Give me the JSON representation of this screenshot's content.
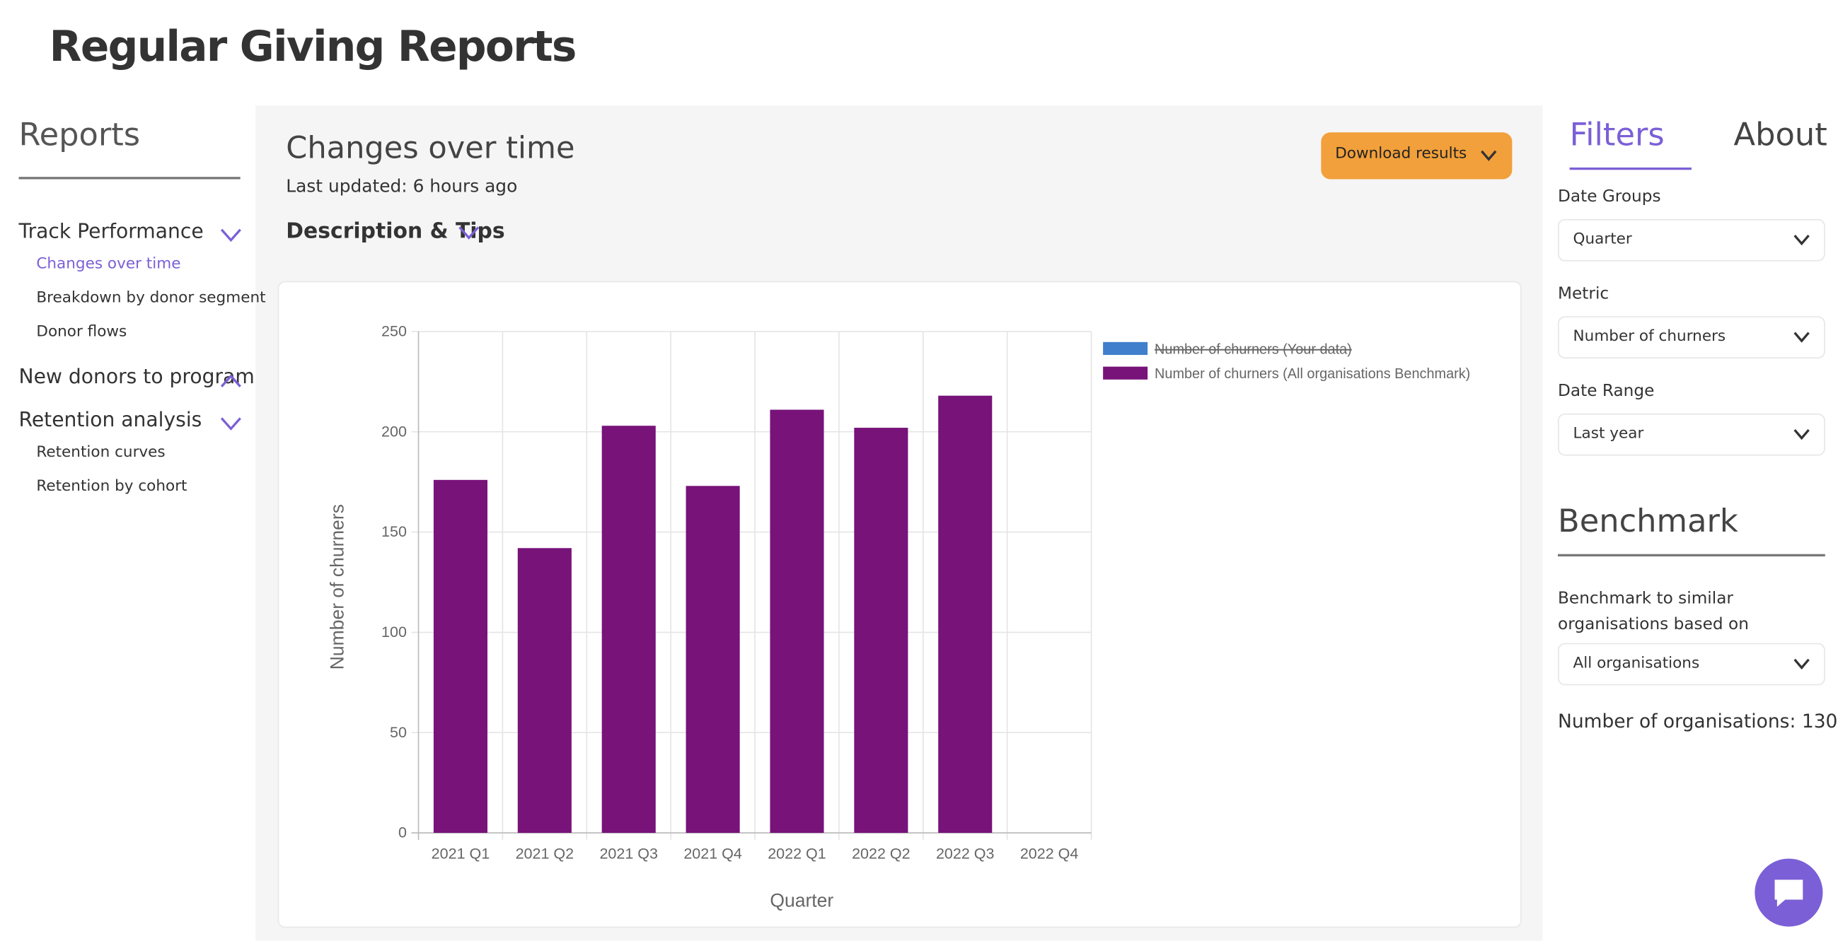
{
  "header": {
    "title": "Regular Giving Reports"
  },
  "sidebar": {
    "heading": "Reports",
    "groups": [
      {
        "label": "Track Performance",
        "items": [
          "Changes over time",
          "Breakdown by donor segment",
          "Donor flows"
        ]
      },
      {
        "label": "New donors to program",
        "items": []
      },
      {
        "label": "Retention analysis",
        "items": [
          "Retention curves",
          "Retention by cohort"
        ]
      }
    ]
  },
  "main": {
    "title": "Changes over time",
    "updated": "Last updated: 6 hours ago",
    "description": "Description & Tips",
    "download": "Download results"
  },
  "chart_data": {
    "type": "bar",
    "categories": [
      "2021 Q1",
      "2021 Q2",
      "2021 Q3",
      "2021 Q4",
      "2022 Q1",
      "2022 Q2",
      "2022 Q3",
      "2022 Q4"
    ],
    "series": [
      {
        "name": "Number of churners (Your data)",
        "color": "#3f7fcb",
        "hidden": true,
        "values": [
          null,
          null,
          null,
          null,
          null,
          null,
          null,
          null
        ]
      },
      {
        "name": "Number of churners (All organisations Benchmark)",
        "color": "#771379",
        "hidden": false,
        "values": [
          176,
          142,
          203,
          173,
          211,
          202,
          218,
          null
        ]
      }
    ],
    "x_label": "Quarter",
    "y_label": "Number of churners",
    "ylim": [
      0,
      250
    ],
    "yticks": [
      0,
      50,
      100,
      150,
      200,
      250
    ],
    "grid": true,
    "legend": "right"
  },
  "filters": {
    "tabs": [
      "Filters",
      "About"
    ],
    "fields": [
      {
        "label": "Date Groups",
        "value": "Quarter"
      },
      {
        "label": "Metric",
        "value": "Number of churners"
      },
      {
        "label": "Date Range",
        "value": "Last year"
      }
    ],
    "benchmark": {
      "heading": "Benchmark",
      "label": "Benchmark to similar organisations based on",
      "value": "All organisations",
      "count": "Number of organisations: 130"
    }
  }
}
